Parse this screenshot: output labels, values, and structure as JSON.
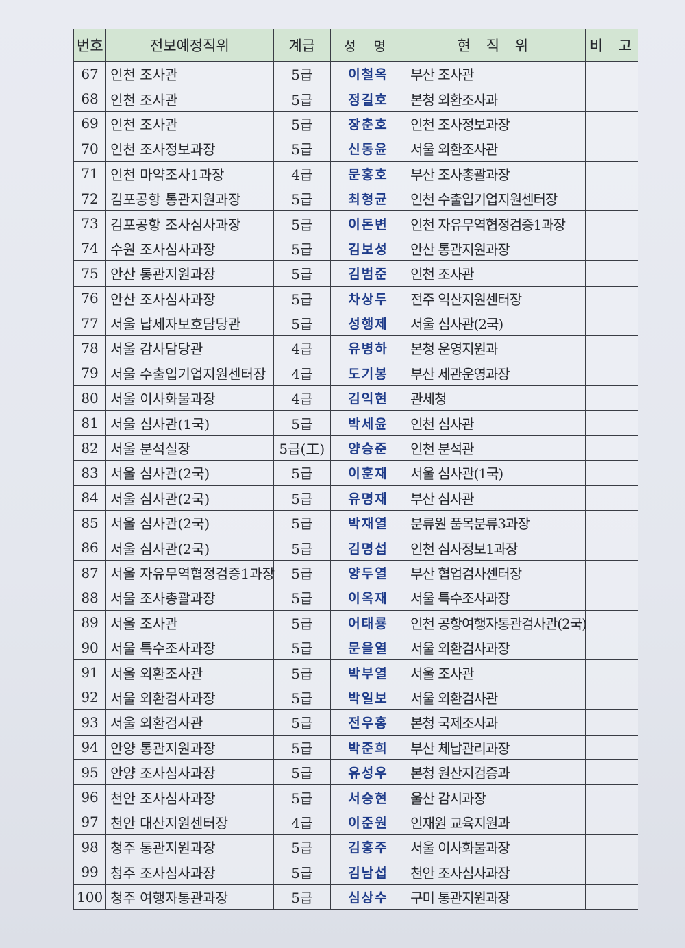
{
  "headers": {
    "no": "번호",
    "new_position": "전보예정직위",
    "grade": "계급",
    "name": "성 명",
    "current_position": "현 직 위",
    "remarks": "비 고"
  },
  "rows": [
    [
      "67",
      "인천 조사관",
      "5급",
      "이철옥",
      "부산 조사관",
      ""
    ],
    [
      "68",
      "인천 조사관",
      "5급",
      "정길호",
      "본청 외환조사과",
      ""
    ],
    [
      "69",
      "인천 조사관",
      "5급",
      "장춘호",
      "인천 조사정보과장",
      ""
    ],
    [
      "70",
      "인천 조사정보과장",
      "5급",
      "신동윤",
      "서울 외환조사관",
      ""
    ],
    [
      "71",
      "인천 마약조사1과장",
      "4급",
      "문홍호",
      "부산 조사총괄과장",
      ""
    ],
    [
      "72",
      "김포공항 통관지원과장",
      "5급",
      "최형균",
      "인천 수출입기업지원센터장",
      ""
    ],
    [
      "73",
      "김포공항 조사심사과장",
      "5급",
      "이돈변",
      "인천 자유무역협정검증1과장",
      ""
    ],
    [
      "74",
      "수원 조사심사과장",
      "5급",
      "김보성",
      "안산 통관지원과장",
      ""
    ],
    [
      "75",
      "안산 통관지원과장",
      "5급",
      "김범준",
      "인천 조사관",
      ""
    ],
    [
      "76",
      "안산 조사심사과장",
      "5급",
      "차상두",
      "전주 익산지원센터장",
      ""
    ],
    [
      "77",
      "서울 납세자보호담당관",
      "5급",
      "성행제",
      "서울 심사관(2국)",
      ""
    ],
    [
      "78",
      "서울 감사담당관",
      "4급",
      "유병하",
      "본청 운영지원과",
      ""
    ],
    [
      "79",
      "서울 수출입기업지원센터장",
      "4급",
      "도기봉",
      "부산 세관운영과장",
      ""
    ],
    [
      "80",
      "서울 이사화물과장",
      "4급",
      "김익현",
      "관세청",
      ""
    ],
    [
      "81",
      "서울 심사관(1국)",
      "5급",
      "박세윤",
      "인천 심사관",
      ""
    ],
    [
      "82",
      "서울 분석실장",
      "5급(工)",
      "양승준",
      "인천 분석관",
      ""
    ],
    [
      "83",
      "서울 심사관(2국)",
      "5급",
      "이훈재",
      "서울 심사관(1국)",
      ""
    ],
    [
      "84",
      "서울 심사관(2국)",
      "5급",
      "유명재",
      "부산 심사관",
      ""
    ],
    [
      "85",
      "서울 심사관(2국)",
      "5급",
      "박재열",
      "분류원 품목분류3과장",
      ""
    ],
    [
      "86",
      "서울 심사관(2국)",
      "5급",
      "김명섭",
      "인천 심사정보1과장",
      ""
    ],
    [
      "87",
      "서울 자유무역협정검증1과장",
      "5급",
      "양두열",
      "부산 협업검사센터장",
      ""
    ],
    [
      "88",
      "서울 조사총괄과장",
      "5급",
      "이옥재",
      "서울 특수조사과장",
      ""
    ],
    [
      "89",
      "서울 조사관",
      "5급",
      "어태룡",
      "인천 공항여행자통관검사관(2국)",
      ""
    ],
    [
      "90",
      "서울 특수조사과장",
      "5급",
      "문을열",
      "서울 외환검사과장",
      ""
    ],
    [
      "91",
      "서울 외환조사관",
      "5급",
      "박부열",
      "서울 조사관",
      ""
    ],
    [
      "92",
      "서울 외환검사과장",
      "5급",
      "박일보",
      "서울 외환검사관",
      ""
    ],
    [
      "93",
      "서울 외환검사관",
      "5급",
      "전우홍",
      "본청 국제조사과",
      ""
    ],
    [
      "94",
      "안양 통관지원과장",
      "5급",
      "박준희",
      "부산 체납관리과장",
      ""
    ],
    [
      "95",
      "안양 조사심사과장",
      "5급",
      "유성우",
      "본청 원산지검증과",
      ""
    ],
    [
      "96",
      "천안 조사심사과장",
      "5급",
      "서승현",
      "울산 감시과장",
      ""
    ],
    [
      "97",
      "천안 대산지원센터장",
      "4급",
      "이준원",
      "인재원 교육지원과",
      ""
    ],
    [
      "98",
      "청주 통관지원과장",
      "5급",
      "김홍주",
      "서울 이사화물과장",
      ""
    ],
    [
      "99",
      "청주 조사심사과장",
      "5급",
      "김남섭",
      "천안 조사심사과장",
      ""
    ],
    [
      "100",
      "청주 여행자통관과장",
      "5급",
      "심상수",
      "구미 통관지원과장",
      ""
    ]
  ]
}
